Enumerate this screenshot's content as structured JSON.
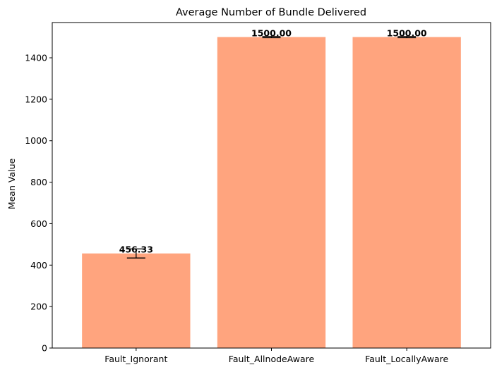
{
  "chart_data": {
    "type": "bar",
    "title": "Average Number of Bundle Delivered",
    "xlabel": "",
    "ylabel": "Mean Value",
    "categories": [
      "Fault_Ignorant",
      "Fault_AllnodeAware",
      "Fault_LocallyAware"
    ],
    "values": [
      456.33,
      1500.0,
      1500.0
    ],
    "value_labels": [
      "456.33",
      "1500.00",
      "1500.00"
    ],
    "error": [
      22,
      3,
      3
    ],
    "ylim": [
      0,
      1570
    ],
    "yticks": [
      0,
      200,
      400,
      600,
      800,
      1000,
      1200,
      1400
    ],
    "grid": false,
    "legend": "none",
    "bar_color": "#FFA47E",
    "error_color": "#000000"
  }
}
